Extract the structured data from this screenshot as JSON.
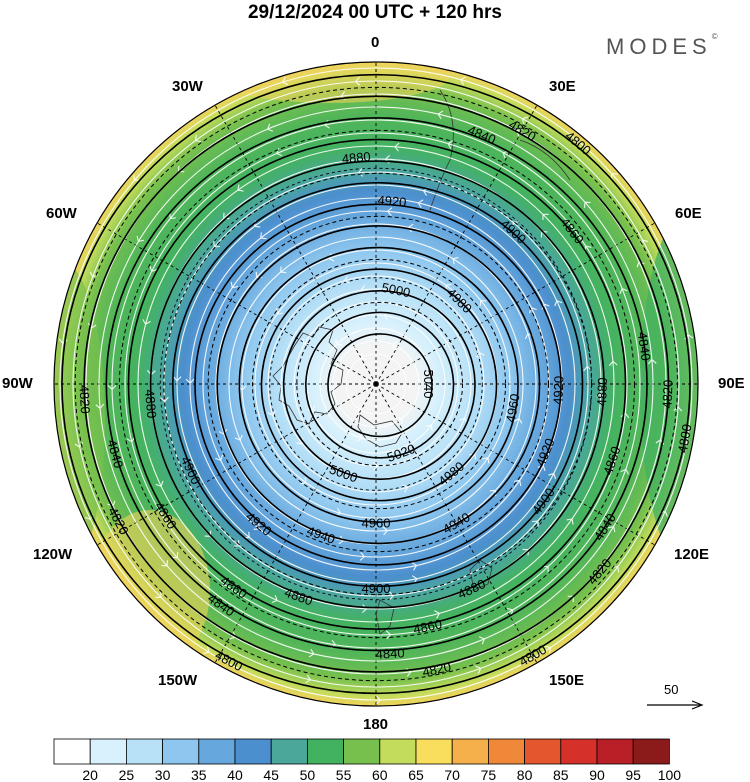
{
  "title": "29/12/2024  00 UTC  + 120 hrs",
  "brand": "MODES",
  "brand_mark": "©",
  "longitude_labels": {
    "top": "0",
    "top_right": "30E",
    "right_upper": "60E",
    "right": "90E",
    "right_lower": "120E",
    "bottom_right": "150E",
    "bottom": "180",
    "bottom_left": "150W",
    "left_lower": "120W",
    "left": "90W",
    "left_upper": "60W",
    "top_left": "30W"
  },
  "contours": {
    "solid": [
      4800,
      4820,
      4840,
      4860,
      4880,
      4900,
      4920,
      4940,
      4960,
      4980,
      5000,
      5020,
      5040
    ],
    "labels": [
      {
        "text": "4800",
        "angle": 208,
        "level": 4800
      },
      {
        "text": "4800",
        "angle": 40,
        "level": 4800
      },
      {
        "text": "4800",
        "angle": 100,
        "level": 4800
      },
      {
        "text": "4800",
        "angle": 150,
        "level": 4800
      },
      {
        "text": "4820",
        "angle": 242,
        "level": 4820
      },
      {
        "text": "4820",
        "angle": 30,
        "level": 4820
      },
      {
        "text": "4820",
        "angle": 92,
        "level": 4820
      },
      {
        "text": "4820",
        "angle": 267,
        "level": 4820
      },
      {
        "text": "4820",
        "angle": 168,
        "level": 4820
      },
      {
        "text": "4820",
        "angle": 130,
        "level": 4820
      },
      {
        "text": "4840",
        "angle": 23,
        "level": 4840
      },
      {
        "text": "4840",
        "angle": 255,
        "level": 4840
      },
      {
        "text": "4840",
        "angle": 215,
        "level": 4840
      },
      {
        "text": "4840",
        "angle": 122,
        "level": 4840
      },
      {
        "text": "4840",
        "angle": 177,
        "level": 4840
      },
      {
        "text": "4840",
        "angle": 82,
        "level": 4840
      },
      {
        "text": "4860",
        "angle": 215,
        "level": 4860
      },
      {
        "text": "4860",
        "angle": 52,
        "level": 4860
      },
      {
        "text": "4860",
        "angle": 108,
        "level": 4860
      },
      {
        "text": "4860",
        "angle": 168,
        "level": 4860
      },
      {
        "text": "4860",
        "angle": 238,
        "level": 4860
      },
      {
        "text": "4880",
        "angle": 355,
        "level": 4880
      },
      {
        "text": "4880",
        "angle": 92,
        "level": 4880
      },
      {
        "text": "4880",
        "angle": 265,
        "level": 4880
      },
      {
        "text": "4880",
        "angle": 200,
        "level": 4880
      },
      {
        "text": "4880",
        "angle": 155,
        "level": 4880
      },
      {
        "text": "4900",
        "angle": 42,
        "level": 4900
      },
      {
        "text": "4900",
        "angle": 245,
        "level": 4900
      },
      {
        "text": "4900",
        "angle": 180,
        "level": 4900
      },
      {
        "text": "4900",
        "angle": 125,
        "level": 4900
      },
      {
        "text": "4920",
        "angle": 5,
        "level": 4920
      },
      {
        "text": "4920",
        "angle": 92,
        "level": 4920
      },
      {
        "text": "4920",
        "angle": 220,
        "level": 4920
      },
      {
        "text": "4920",
        "angle": 112,
        "level": 4920
      },
      {
        "text": "4940",
        "angle": 200,
        "level": 4940
      },
      {
        "text": "4940",
        "angle": 150,
        "level": 4940
      },
      {
        "text": "4960",
        "angle": 100,
        "level": 4960
      },
      {
        "text": "4960",
        "angle": 180,
        "level": 4960
      },
      {
        "text": "4980",
        "angle": 45,
        "level": 4980
      },
      {
        "text": "4980",
        "angle": 140,
        "level": 4980
      },
      {
        "text": "5000",
        "angle": 12,
        "level": 5000
      },
      {
        "text": "5000",
        "angle": 200,
        "level": 5000
      },
      {
        "text": "5020",
        "angle": 160,
        "level": 5020
      },
      {
        "text": "5040",
        "angle": 90,
        "level": 5040
      }
    ]
  },
  "wind_scale_label": "50",
  "colorbar": {
    "ticks": [
      "20",
      "25",
      "30",
      "35",
      "40",
      "45",
      "50",
      "55",
      "60",
      "65",
      "70",
      "75",
      "80",
      "85",
      "90",
      "95",
      "100"
    ],
    "colors": [
      "#ffffff",
      "#d8f1fc",
      "#b8e1f7",
      "#8dc6ee",
      "#66a7dd",
      "#4c8fce",
      "#4aa79a",
      "#43b260",
      "#77c04e",
      "#c3dc5b",
      "#f8de5c",
      "#f6b04b",
      "#f08839",
      "#e4562d",
      "#d6302a",
      "#b81f26",
      "#8b1a1a"
    ]
  }
}
